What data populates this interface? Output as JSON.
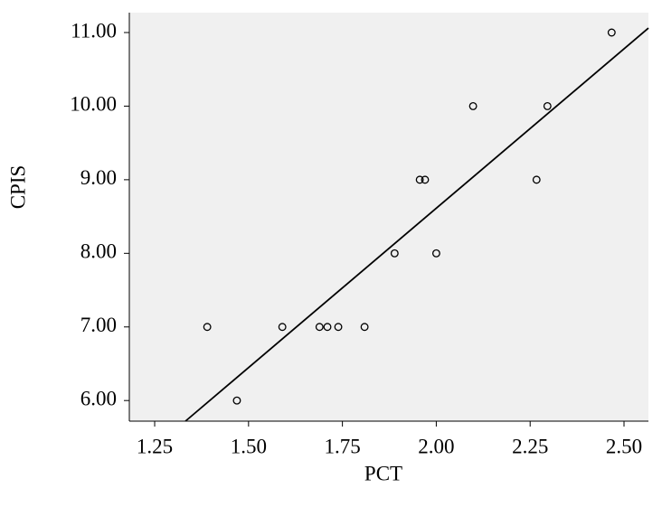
{
  "chart_data": {
    "type": "scatter",
    "x_label": "PCT",
    "y_label": "CPIS",
    "x": [
      1.39,
      1.469,
      1.59,
      1.689,
      1.71,
      1.739,
      1.809,
      1.889,
      1.956,
      1.97,
      2.0,
      2.098,
      2.267,
      2.296,
      2.467
    ],
    "values": [
      7,
      6,
      7,
      7,
      7,
      7,
      7,
      8,
      9,
      9,
      8,
      10,
      9,
      10,
      11
    ],
    "color": "#000000",
    "fit_line": {
      "x": [
        1.332,
        2.565
      ],
      "y": [
        5.72,
        11.06
      ],
      "color": "#000000"
    },
    "xlim": [
      1.1825,
      2.565
    ],
    "ylim": [
      5.72,
      11.27
    ],
    "xticks": [
      1.25,
      {
        "value": 1.5,
        "label": "1.50"
      },
      1.75,
      {
        "value": 2.0,
        "label": "2.00"
      },
      2.25,
      {
        "value": 2.5,
        "label": "2.50"
      }
    ],
    "yticks": [
      {
        "value": 6,
        "label": "6.00"
      },
      {
        "value": 7,
        "label": "7.00"
      },
      {
        "value": 8,
        "label": "8.00"
      },
      {
        "value": 9,
        "label": "9.00"
      },
      {
        "value": 10,
        "label": "10.00"
      },
      {
        "value": 11,
        "label": "11.00"
      }
    ]
  }
}
